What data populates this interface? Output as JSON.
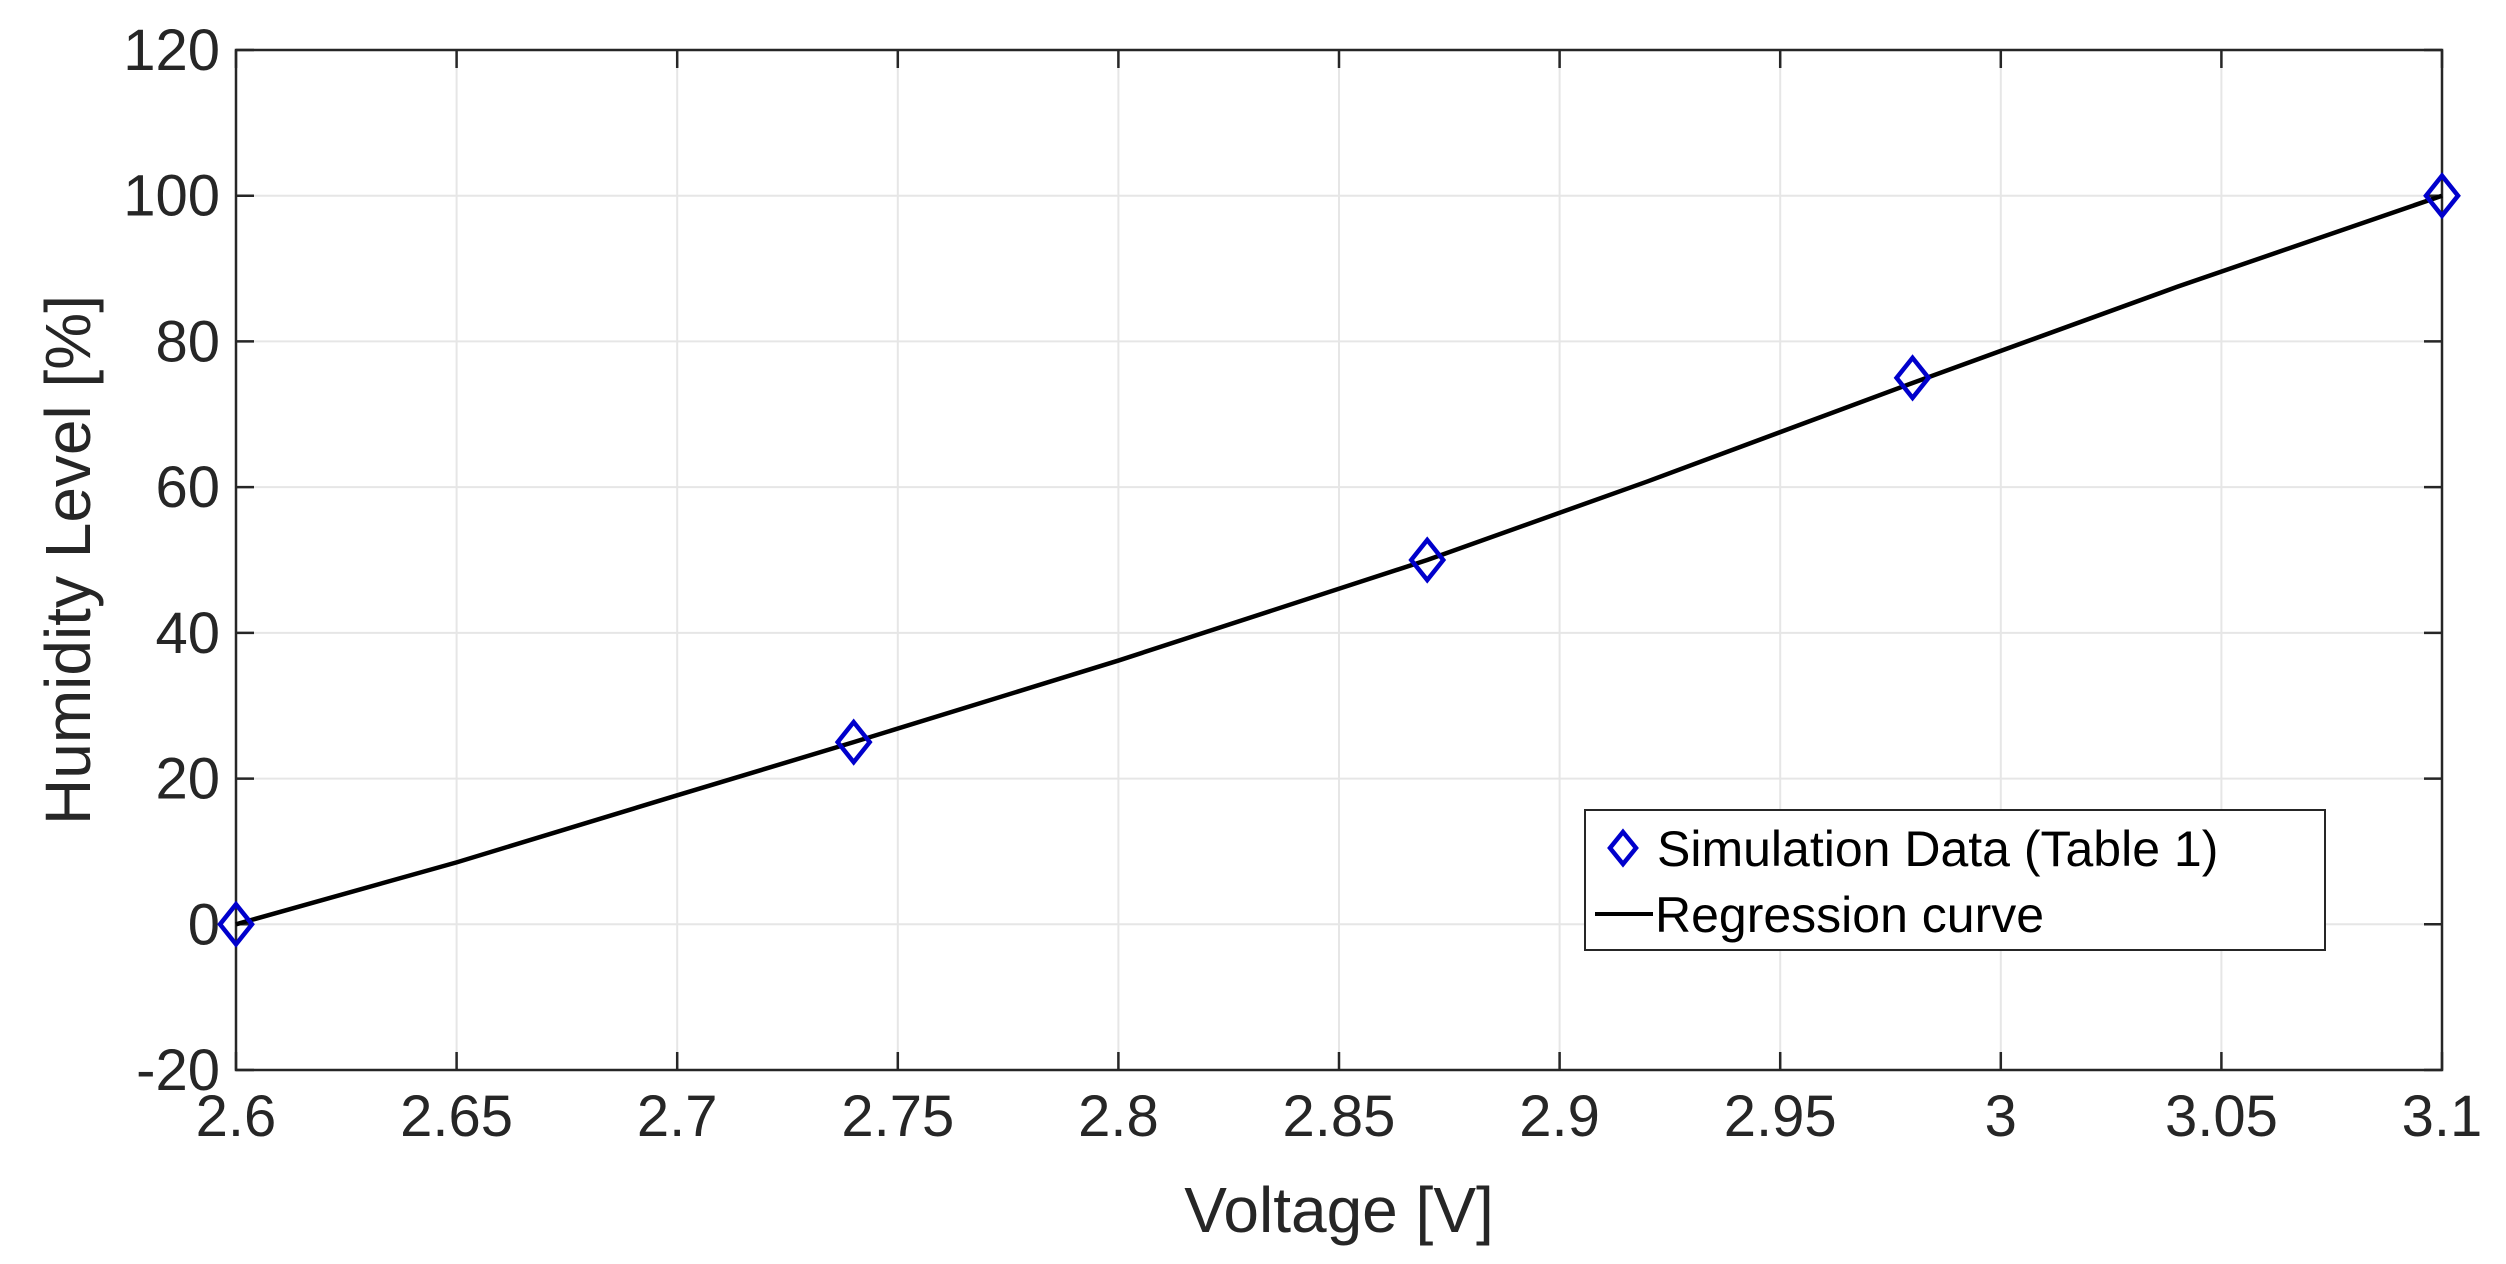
{
  "chart_data": {
    "type": "line",
    "title": "",
    "xlabel": "Voltage [V]",
    "ylabel": "Humidity Level [%]",
    "xlim": [
      2.6,
      3.1
    ],
    "ylim": [
      -20,
      120
    ],
    "grid": true,
    "legend_position": "bottom-right",
    "x_ticks": [
      2.6,
      2.65,
      2.7,
      2.75,
      2.8,
      2.85,
      2.9,
      2.95,
      3.0,
      3.05,
      3.1
    ],
    "x_tick_labels": [
      "2.6",
      "2.65",
      "2.7",
      "2.75",
      "2.8",
      "2.85",
      "2.9",
      "2.95",
      "3",
      "3.05",
      "3.1"
    ],
    "y_ticks": [
      -20,
      0,
      20,
      40,
      60,
      80,
      100,
      120
    ],
    "y_tick_labels": [
      "-20",
      "0",
      "20",
      "40",
      "60",
      "80",
      "100",
      "120"
    ],
    "series": [
      {
        "name": "Simulation Data (Table 1)",
        "kind": "scatter",
        "marker": "diamond",
        "color": "#0000cc",
        "x": [
          2.6,
          2.74,
          2.87,
          2.98,
          3.1
        ],
        "y": [
          0,
          25,
          50,
          75,
          100
        ]
      },
      {
        "name": "Regression curve",
        "kind": "line",
        "color": "#000000",
        "x": [
          2.6,
          2.65,
          2.7,
          2.74,
          2.8,
          2.87,
          2.92,
          2.98,
          3.04,
          3.1
        ],
        "y": [
          0,
          8.5,
          17.7,
          25,
          36.2,
          50,
          60.8,
          74.3,
          87.5,
          100
        ]
      }
    ]
  }
}
